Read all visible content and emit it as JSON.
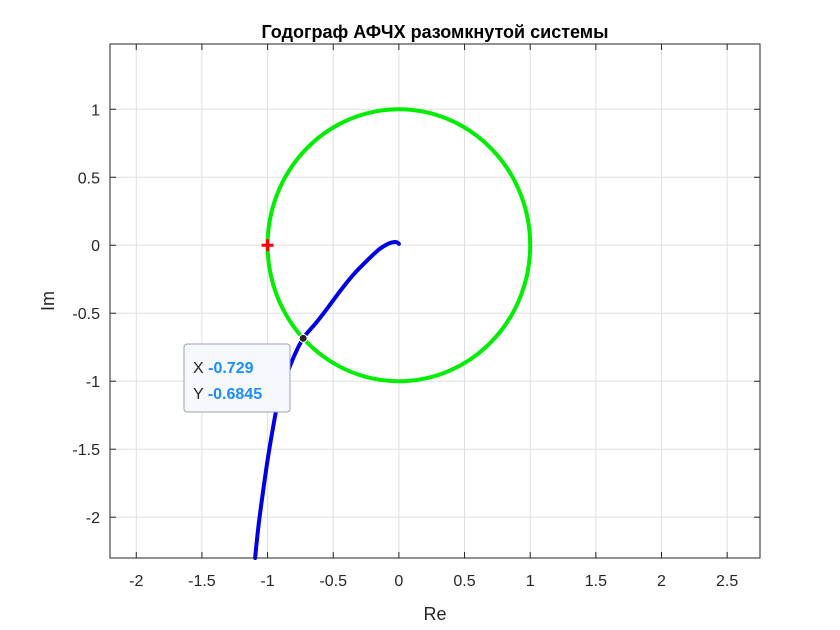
{
  "chart_data": {
    "type": "line",
    "title": "Годограф АФЧХ разомкнутой системы",
    "xlabel": "Re",
    "ylabel": "Im",
    "xlim": [
      -2.2,
      2.75
    ],
    "ylim": [
      -2.3,
      1.48
    ],
    "xticks": [
      -2,
      -1.5,
      -1,
      -0.5,
      0,
      0.5,
      1,
      1.5,
      2,
      2.5
    ],
    "xtick_labels": [
      "-2",
      "-1.5",
      "-1",
      "-0.5",
      "0",
      "0.5",
      "1",
      "1.5",
      "2",
      "2.5"
    ],
    "yticks": [
      -2,
      -1.5,
      -1,
      -0.5,
      0,
      0.5,
      1
    ],
    "ytick_labels": [
      "-2",
      "-1.5",
      "-1",
      "-0.5",
      "0",
      "0.5",
      "1"
    ],
    "grid": true,
    "series": [
      {
        "color": "#0000e6",
        "x": [
          0.0,
          -0.015,
          -0.04,
          -0.08,
          -0.15,
          -0.25,
          -0.35,
          -0.45,
          -0.55,
          -0.63,
          -0.729,
          -0.8,
          -0.86,
          -0.92,
          -0.96,
          -1.0,
          -1.04,
          -1.07,
          -1.095
        ],
        "y": [
          0.01,
          0.022,
          0.023,
          0.012,
          -0.03,
          -0.12,
          -0.22,
          -0.34,
          -0.47,
          -0.57,
          -0.6845,
          -0.82,
          -0.97,
          -1.15,
          -1.35,
          -1.58,
          -1.85,
          -2.07,
          -2.3
        ]
      },
      {
        "color": "#00ee00",
        "shape": "unit circle",
        "center": [
          0,
          0
        ],
        "radius": 1
      }
    ],
    "markers": [
      {
        "shape": "plus",
        "color": "#ff0000",
        "x": -1,
        "y": 0
      }
    ],
    "datatip": {
      "x": -0.729,
      "y": -0.6845,
      "x_label": "X",
      "y_label": "Y",
      "x_text": "-0.729",
      "y_text": "-0.6845"
    }
  }
}
